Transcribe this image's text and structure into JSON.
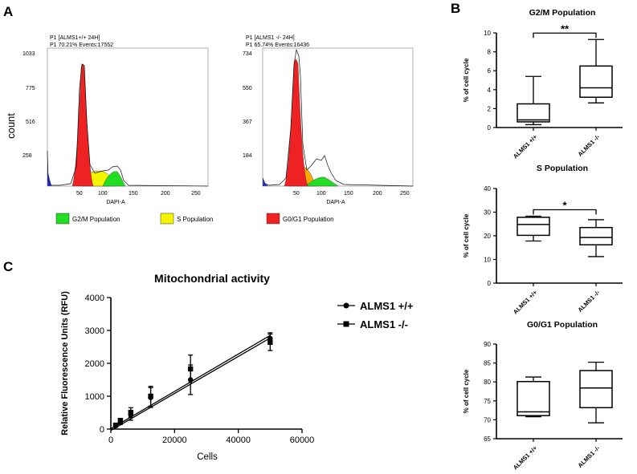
{
  "panels": {
    "a": "A",
    "b": "B",
    "c": "C"
  },
  "flow": {
    "ylabel": "count",
    "xlabel": "DAPI-A",
    "xticks": [
      "50",
      "100",
      "150",
      "200",
      "250"
    ],
    "left": {
      "line1": "P1 [ALMS1+/+ 24H]",
      "line2": "P1  70.21% Events:17552",
      "yticks": [
        "1033",
        "775",
        "516",
        "258"
      ]
    },
    "right": {
      "line1": "P1 [ALMS1 -/- 24H]",
      "line2": "P1  65.74% Events:16436",
      "yticks": [
        "734",
        "550",
        "367",
        "184"
      ]
    },
    "legend": [
      {
        "label": "G2/M Population",
        "color": "#22dd22"
      },
      {
        "label": "S Population",
        "color": "#f4f400"
      },
      {
        "label": "G0/G1 Population",
        "color": "#ee2222"
      }
    ]
  },
  "chart_data": [
    {
      "type": "box",
      "title": "G2/M Population",
      "ylabel": "% of cell cycle",
      "ylim": [
        0,
        10
      ],
      "yticks": [
        "0",
        "2",
        "4",
        "6",
        "8",
        "10"
      ],
      "categories": [
        "ALMS1 +/+",
        "ALMS1 -/-"
      ],
      "boxes": [
        {
          "min": 0.3,
          "q1": 0.6,
          "median": 0.8,
          "q3": 2.5,
          "max": 5.4
        },
        {
          "min": 2.6,
          "q1": 3.2,
          "median": 4.2,
          "q3": 6.5,
          "max": 9.3
        }
      ],
      "significance": "**"
    },
    {
      "type": "box",
      "title": "S Population",
      "ylabel": "% of cell cycle",
      "ylim": [
        0,
        40
      ],
      "yticks": [
        "0",
        "10",
        "20",
        "30",
        "40"
      ],
      "categories": [
        "ALMS1 +/+",
        "ALMS1 -/-"
      ],
      "boxes": [
        {
          "min": 17.8,
          "q1": 20.2,
          "median": 24.8,
          "q3": 27.8,
          "max": 28.3
        },
        {
          "min": 11.2,
          "q1": 16.2,
          "median": 19.3,
          "q3": 23.5,
          "max": 26.8
        }
      ],
      "significance": "*"
    },
    {
      "type": "box",
      "title": "G0/G1 Population",
      "ylabel": "% of cell cycle",
      "ylim": [
        65,
        90
      ],
      "yticks": [
        "65",
        "70",
        "75",
        "80",
        "85",
        "90"
      ],
      "categories": [
        "ALMS1 +/+",
        "ALMS1 -/-"
      ],
      "boxes": [
        {
          "min": 70.8,
          "q1": 71.1,
          "median": 72.1,
          "q3": 80.1,
          "max": 81.3
        },
        {
          "min": 69.2,
          "q1": 73.2,
          "median": 78.4,
          "q3": 83.0,
          "max": 85.2
        }
      ],
      "significance": ""
    },
    {
      "type": "scatter",
      "title": "Mitochondrial activity",
      "xlabel": "Cells",
      "ylabel": "Relative Fluorescence Units (RFU)",
      "xlim": [
        0,
        60000
      ],
      "ylim": [
        0,
        4000
      ],
      "xticks": [
        "0",
        "20000",
        "40000",
        "60000"
      ],
      "yticks": [
        "0",
        "1000",
        "2000",
        "3000",
        "4000"
      ],
      "legend_position": "right",
      "series": [
        {
          "name": "ALMS1 +/+",
          "marker": "circle",
          "points": [
            {
              "x": 1500,
              "y": 100,
              "err": 40
            },
            {
              "x": 3000,
              "y": 200,
              "err": 60
            },
            {
              "x": 6250,
              "y": 420,
              "err": 150
            },
            {
              "x": 12500,
              "y": 960,
              "err": 300
            },
            {
              "x": 25000,
              "y": 1500,
              "err": 450
            },
            {
              "x": 50000,
              "y": 2760,
              "err": 170
            }
          ],
          "fit": [
            [
              0,
              10
            ],
            [
              50000,
              2850
            ]
          ]
        },
        {
          "name": "ALMS1 -/-",
          "marker": "square",
          "points": [
            {
              "x": 1500,
              "y": 120,
              "err": 40
            },
            {
              "x": 3000,
              "y": 260,
              "err": 60
            },
            {
              "x": 6250,
              "y": 500,
              "err": 150
            },
            {
              "x": 12500,
              "y": 1000,
              "err": 300
            },
            {
              "x": 25000,
              "y": 1830,
              "err": 420
            },
            {
              "x": 50000,
              "y": 2640,
              "err": 250
            }
          ],
          "fit": [
            [
              0,
              -40
            ],
            [
              50000,
              2770
            ]
          ]
        }
      ]
    }
  ]
}
